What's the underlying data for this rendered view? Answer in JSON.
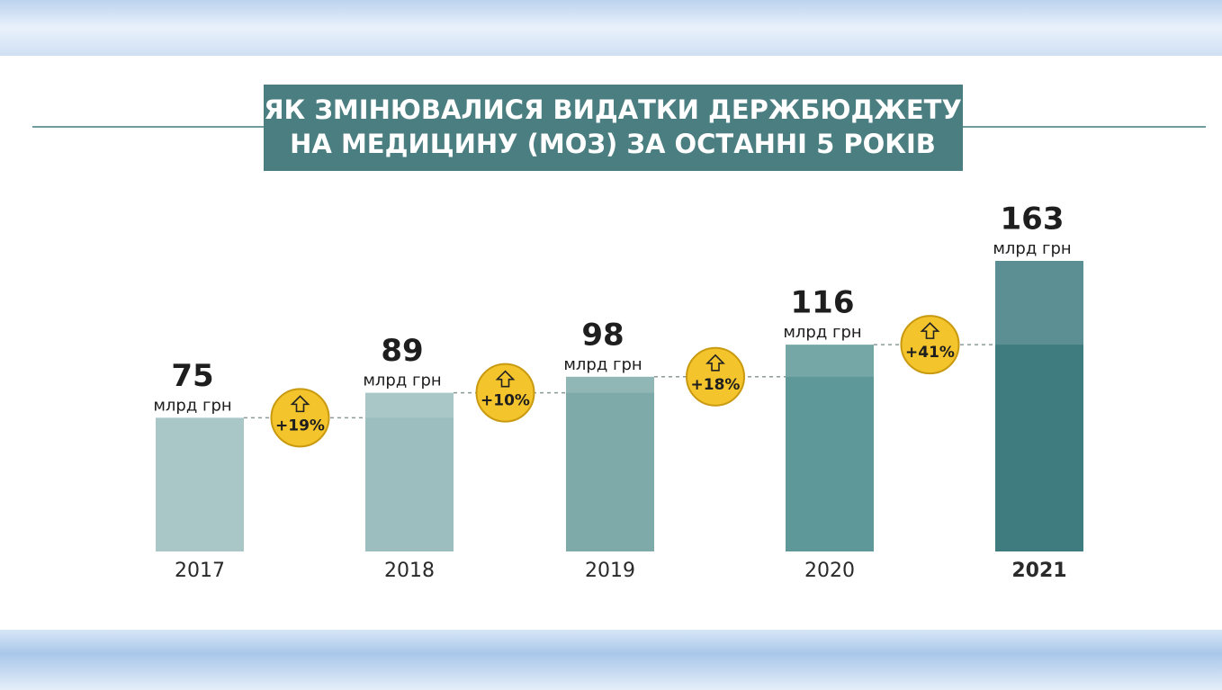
{
  "chart_data": {
    "type": "bar",
    "title": [
      "ЯК ЗМІНЮВАЛИСЯ ВИДАТКИ ДЕРЖБЮДЖЕТУ",
      "НА МЕДИЦИНУ (МОЗ) ЗА ОСТАННІ 5 РОКІВ"
    ],
    "categories": [
      "2017",
      "2018",
      "2019",
      "2020",
      "2021"
    ],
    "values": [
      75,
      89,
      98,
      116,
      163
    ],
    "unit": "млрд грн",
    "colors": [
      "#a9c7c7",
      "#9cbebe",
      "#7eaaaa",
      "#5f9898",
      "#3f7c80"
    ],
    "growth": {
      "values": [
        19,
        10,
        18,
        41
      ],
      "value_labels": [
        "+19%",
        "+10%",
        "+18%",
        "+41%"
      ],
      "color": "#f3c42c"
    }
  }
}
